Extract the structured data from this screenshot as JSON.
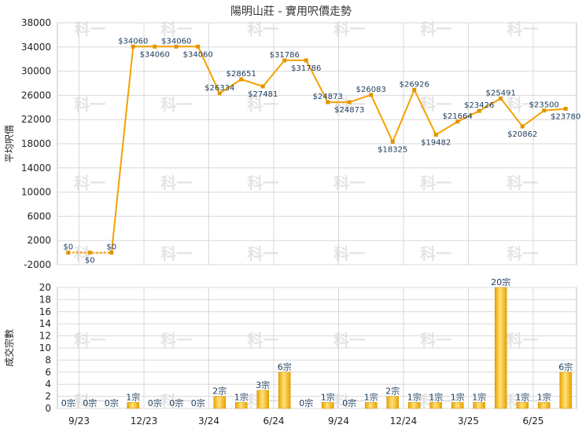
{
  "chart_data": [
    {
      "type": "line",
      "title": "陽明山莊 - 實用呎價走勢",
      "ylabel": "平均呎價",
      "ylim": [
        -2000,
        38000
      ],
      "yticks": [
        -2000,
        2000,
        6000,
        10000,
        14000,
        18000,
        22000,
        26000,
        30000,
        34000,
        38000
      ],
      "grid": true,
      "watermark": "科一",
      "values": [
        0,
        0,
        0,
        34060,
        34060,
        34060,
        34060,
        26334,
        28651,
        27481,
        31786,
        31786,
        24873,
        24873,
        26083,
        18325,
        26926,
        19482,
        21664,
        23426,
        25491,
        20862,
        23500,
        23780
      ],
      "labels": [
        "$0",
        "$0",
        "$0",
        "$34060",
        "$34060",
        "$34060",
        "$34060",
        "$26334",
        "$28651",
        "$27481",
        "$31786",
        "$31786",
        "$24873",
        "$24873",
        "$26083",
        "$18325",
        "$26926",
        "$19482",
        "$21664",
        "$23426",
        "$25491",
        "$20862",
        "$23500",
        "$23780"
      ],
      "label_pos": [
        "above",
        "below",
        "above",
        "above",
        "below",
        "above",
        "below",
        "above",
        "above",
        "below",
        "above",
        "below",
        "above",
        "below",
        "above",
        "below",
        "above",
        "below",
        "above",
        "above",
        "above",
        "below",
        "above",
        "below"
      ],
      "colors": {
        "line": "#f5a100",
        "grid": "#d8d8d8"
      }
    },
    {
      "type": "bar",
      "ylabel": "成交宗數",
      "ylim": [
        0,
        20
      ],
      "yticks": [
        0,
        2,
        4,
        6,
        8,
        10,
        12,
        14,
        16,
        18,
        20
      ],
      "xticks": [
        "9/23",
        "12/23",
        "3/24",
        "6/24",
        "9/24",
        "12/24",
        "3/25",
        "6/25"
      ],
      "values": [
        0,
        0,
        0,
        1,
        0,
        0,
        0,
        2,
        1,
        3,
        6,
        0,
        1,
        0,
        1,
        2,
        1,
        1,
        1,
        1,
        20,
        1,
        1,
        6
      ],
      "labels": [
        "0宗",
        "0宗",
        "0宗",
        "1宗",
        "0宗",
        "0宗",
        "0宗",
        "2宗",
        "1宗",
        "3宗",
        "6宗",
        "0宗",
        "1宗",
        "0宗",
        "1宗",
        "2宗",
        "1宗",
        "1宗",
        "1宗",
        "1宗",
        "20宗",
        "1宗",
        "1宗",
        "6宗"
      ],
      "colors": {
        "bar_dark": "#e8a200",
        "bar_light": "#ffe27a",
        "grid": "#d8d8d8"
      }
    }
  ]
}
